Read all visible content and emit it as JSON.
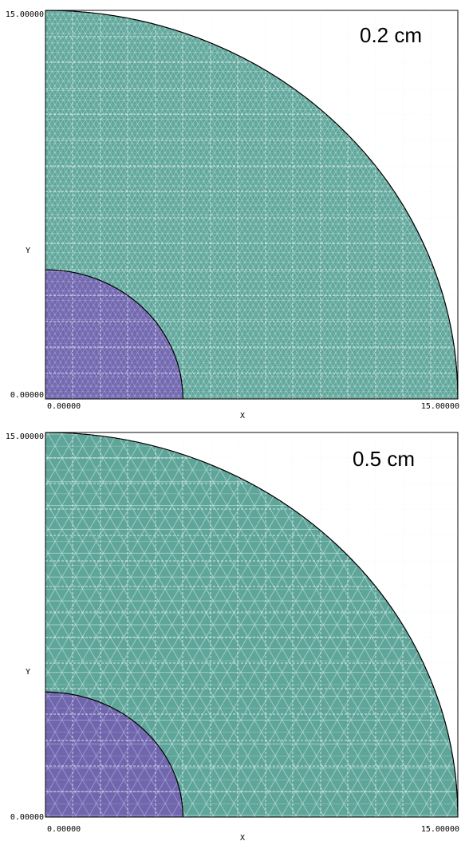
{
  "colors": {
    "outer_region": "#5fa59a",
    "inner_region": "#6f66ad",
    "mesh_line": "#b4dcd4",
    "mesh_line_inner": "#a9a2d8",
    "grid_line": "#e0f2f6",
    "boundary": "#000000",
    "background": "#ffffff"
  },
  "panels": [
    {
      "label": "0.2 cm",
      "element_size_cm": 0.2,
      "x_axis": {
        "title": "X",
        "min_label": "0.00000",
        "max_label": "15.00000",
        "range": [
          0,
          15
        ]
      },
      "y_axis": {
        "title": "Y",
        "min_label": "0.00000",
        "max_label": "15.00000",
        "range": [
          0,
          15
        ]
      },
      "regions": [
        {
          "name": "outer",
          "shape": "quarter-circle",
          "radius": 15
        },
        {
          "name": "inner",
          "shape": "quarter-circle",
          "radius": 5
        }
      ]
    },
    {
      "label": "0.5 cm",
      "element_size_cm": 0.5,
      "x_axis": {
        "title": "X",
        "min_label": "0.00000",
        "max_label": "15.00000",
        "range": [
          0,
          15
        ]
      },
      "y_axis": {
        "title": "Y",
        "min_label": "0.00000",
        "max_label": "15.00000",
        "range": [
          0,
          15
        ]
      },
      "regions": [
        {
          "name": "outer",
          "shape": "quarter-circle",
          "radius": 15
        },
        {
          "name": "inner",
          "shape": "quarter-circle",
          "radius": 5
        }
      ]
    }
  ]
}
